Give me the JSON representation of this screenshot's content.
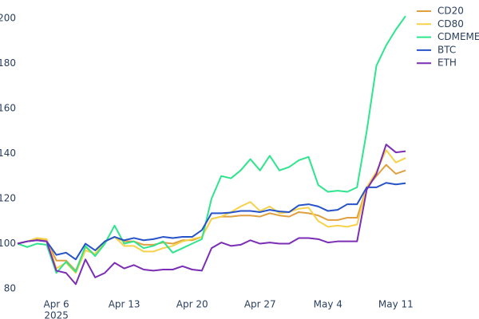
{
  "chart_data": {
    "type": "line",
    "x": [
      "2025-04-02",
      "2025-04-03",
      "2025-04-04",
      "2025-04-05",
      "2025-04-06",
      "2025-04-07",
      "2025-04-08",
      "2025-04-09",
      "2025-04-10",
      "2025-04-11",
      "2025-04-12",
      "2025-04-13",
      "2025-04-14",
      "2025-04-15",
      "2025-04-16",
      "2025-04-17",
      "2025-04-18",
      "2025-04-19",
      "2025-04-20",
      "2025-04-21",
      "2025-04-22",
      "2025-04-23",
      "2025-04-24",
      "2025-04-25",
      "2025-04-26",
      "2025-04-27",
      "2025-04-28",
      "2025-04-29",
      "2025-04-30",
      "2025-05-01",
      "2025-05-02",
      "2025-05-03",
      "2025-05-04",
      "2025-05-05",
      "2025-05-06",
      "2025-05-07",
      "2025-05-08",
      "2025-05-09",
      "2025-05-10",
      "2025-05-11",
      "2025-05-12"
    ],
    "series": [
      {
        "name": "CD20",
        "color": "#e0a040",
        "values": [
          100,
          101,
          102,
          101.5,
          92.5,
          92.5,
          88,
          98.5,
          95,
          101,
          103,
          101,
          101,
          99.5,
          99.5,
          100.5,
          100,
          101.5,
          101.5,
          103,
          111,
          112,
          112,
          112.5,
          112.5,
          112,
          113.5,
          112.5,
          112,
          114,
          113.5,
          112.5,
          110.5,
          110.5,
          111.5,
          111.5,
          125,
          130,
          135,
          131,
          132.5
        ]
      },
      {
        "name": "CD80",
        "color": "#f6d24a",
        "values": [
          100,
          101,
          102.5,
          102,
          89,
          91.5,
          87,
          97,
          95.5,
          101,
          103,
          99,
          99,
          96.5,
          96.5,
          98,
          99,
          101,
          102,
          103,
          111,
          112,
          114,
          116.5,
          118.5,
          114.5,
          116.5,
          113.5,
          114,
          115.5,
          116,
          110,
          107.5,
          108,
          107.5,
          108.5,
          125,
          132,
          141.5,
          136,
          138
        ]
      },
      {
        "name": "CDMEME",
        "color": "#2ee58d",
        "values": [
          100,
          98.5,
          100,
          99.5,
          87,
          92,
          87.5,
          99,
          94.5,
          100,
          108,
          100,
          101,
          98,
          99,
          101,
          96,
          98,
          100,
          102,
          120,
          130,
          129,
          132.5,
          137.5,
          132.5,
          139,
          132.5,
          134,
          137,
          138.5,
          126,
          123,
          123.5,
          123,
          125,
          150,
          179,
          188,
          195,
          201
        ]
      },
      {
        "name": "BTC",
        "color": "#2753c9",
        "values": [
          100,
          101,
          101.5,
          101,
          95,
          96,
          93,
          100,
          97,
          101,
          103,
          101.5,
          102.5,
          101.5,
          102,
          103,
          102.5,
          103,
          103,
          106,
          113.5,
          113.5,
          113.8,
          114.5,
          114.5,
          114,
          115,
          114.3,
          114,
          117,
          117.5,
          116.5,
          114.5,
          115,
          117.5,
          117.5,
          125,
          125,
          127,
          126.3,
          126.8
        ]
      },
      {
        "name": "ETH",
        "color": "#7b2db5",
        "values": [
          100,
          101,
          101.5,
          101,
          88,
          87,
          82,
          93,
          85,
          87,
          91.5,
          89,
          90.5,
          88.5,
          88,
          88.5,
          88.5,
          90,
          88.5,
          88,
          98,
          100.5,
          99,
          99.5,
          101.5,
          100,
          100.5,
          100,
          100,
          102.5,
          102.5,
          102,
          100.5,
          101,
          101,
          101,
          124,
          131,
          144,
          140.5,
          141
        ]
      }
    ],
    "xlim": [
      "2025-04-02",
      "2025-05-12"
    ],
    "xticks": [
      {
        "value": "2025-04-06",
        "label": "Apr 6"
      },
      {
        "value": "2025-04-13",
        "label": "Apr 13"
      },
      {
        "value": "2025-04-20",
        "label": "Apr 20"
      },
      {
        "value": "2025-04-27",
        "label": "Apr 27"
      },
      {
        "value": "2025-05-04",
        "label": "May 4"
      },
      {
        "value": "2025-05-11",
        "label": "May 11"
      }
    ],
    "xtick_year": "2025",
    "ylim": [
      76,
      204
    ],
    "yticks": [
      80,
      100,
      120,
      140,
      160,
      180,
      200
    ],
    "legend": "top-right"
  }
}
